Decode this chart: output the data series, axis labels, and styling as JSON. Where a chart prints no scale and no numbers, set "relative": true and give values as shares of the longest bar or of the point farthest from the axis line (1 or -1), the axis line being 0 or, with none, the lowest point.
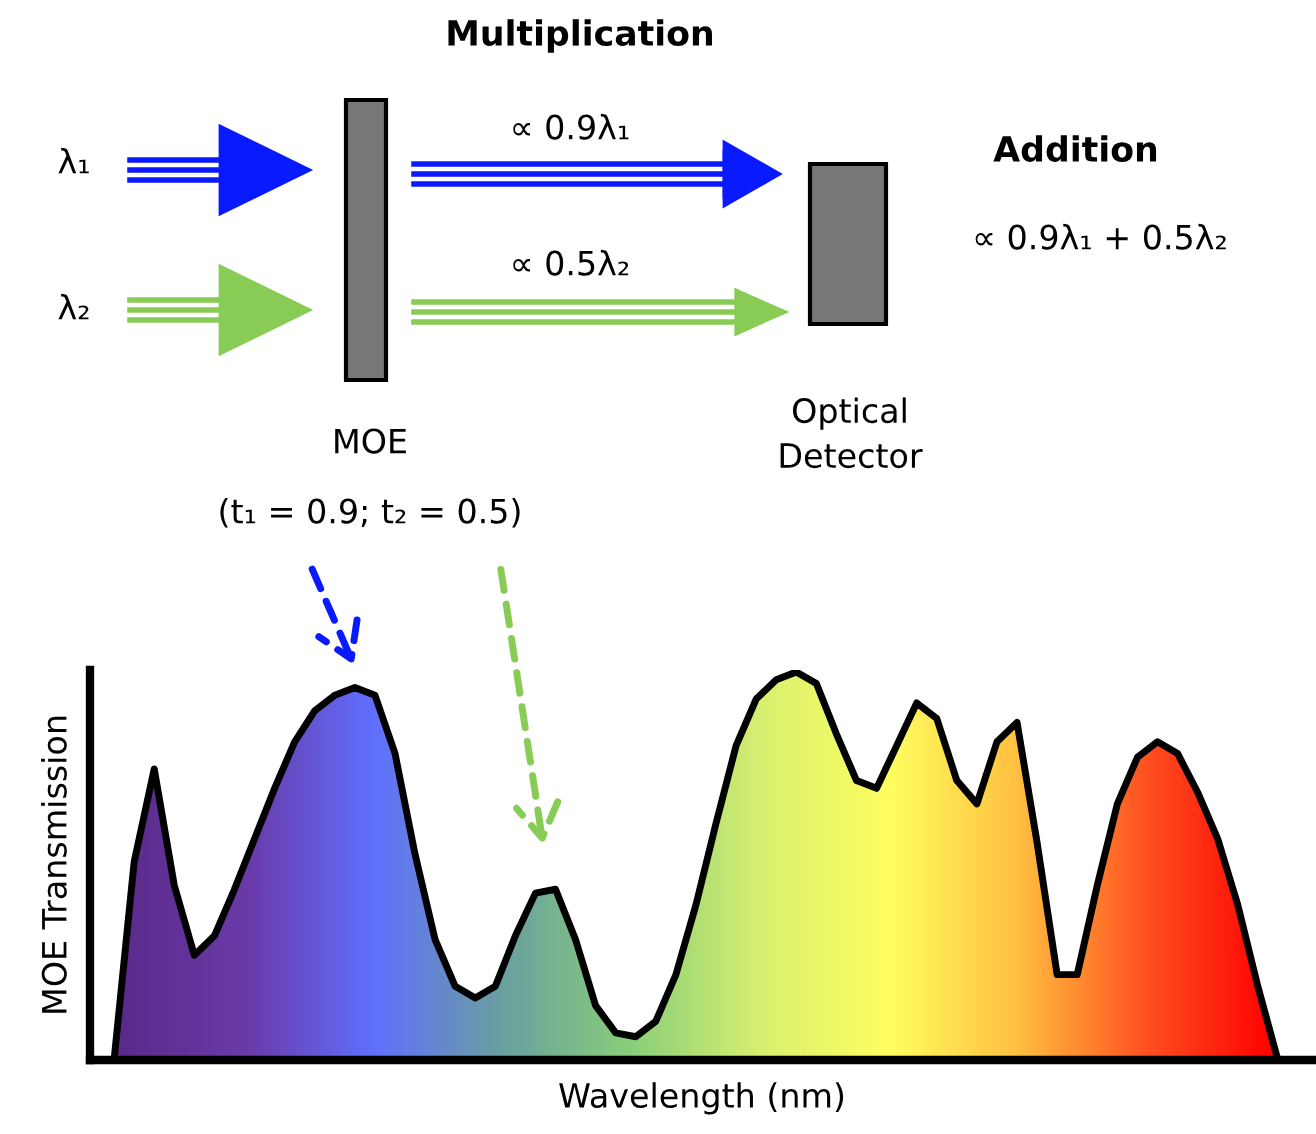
{
  "chart_data": {
    "type": "line",
    "relative": true,
    "xlabel": "Wavelength (nm)",
    "ylabel": "MOE Transmission",
    "categories": [
      null,
      null,
      null,
      null,
      null,
      null,
      null,
      null,
      null,
      null,
      null,
      null,
      null,
      null,
      null,
      null,
      null,
      null,
      null,
      null,
      null,
      null,
      null,
      null,
      null,
      null,
      null,
      null,
      null,
      null,
      null,
      null,
      null,
      null,
      null,
      null,
      null,
      null,
      null,
      null,
      null,
      null,
      null,
      null,
      null,
      null,
      null,
      null,
      null,
      null,
      null,
      null,
      null,
      null,
      null,
      null,
      null,
      null,
      null
    ],
    "series": [
      {
        "color": "#000000",
        "values": [
          0,
          0.51,
          0.75,
          0.45,
          0.27,
          0.32,
          0.44,
          0.57,
          0.7,
          0.82,
          0.9,
          0.94,
          0.96,
          0.94,
          0.79,
          0.53,
          0.31,
          0.19,
          0.16,
          0.19,
          0.32,
          0.43,
          0.44,
          0.31,
          0.14,
          0.07,
          0.06,
          0.1,
          0.22,
          0.4,
          0.61,
          0.81,
          0.93,
          0.98,
          1.0,
          0.97,
          0.84,
          0.72,
          0.7,
          0.81,
          0.92,
          0.88,
          0.72,
          0.66,
          0.82,
          0.87,
          0.56,
          0.22,
          0.22,
          0.45,
          0.66,
          0.78,
          0.82,
          0.79,
          0.69,
          0.57,
          0.4,
          0.19,
          0
        ]
      }
    ],
    "annotations": [
      "Multiplication",
      "Addition",
      "λ₁",
      "λ₂",
      "∝ 0.9λ₁",
      "∝ 0.5λ₂",
      "∝ 0.9λ₁ + 0.5λ₂",
      "MOE",
      "(t₁ = 0.9; t₂ = 0.5)",
      "Optical\nDetector"
    ]
  }
}
